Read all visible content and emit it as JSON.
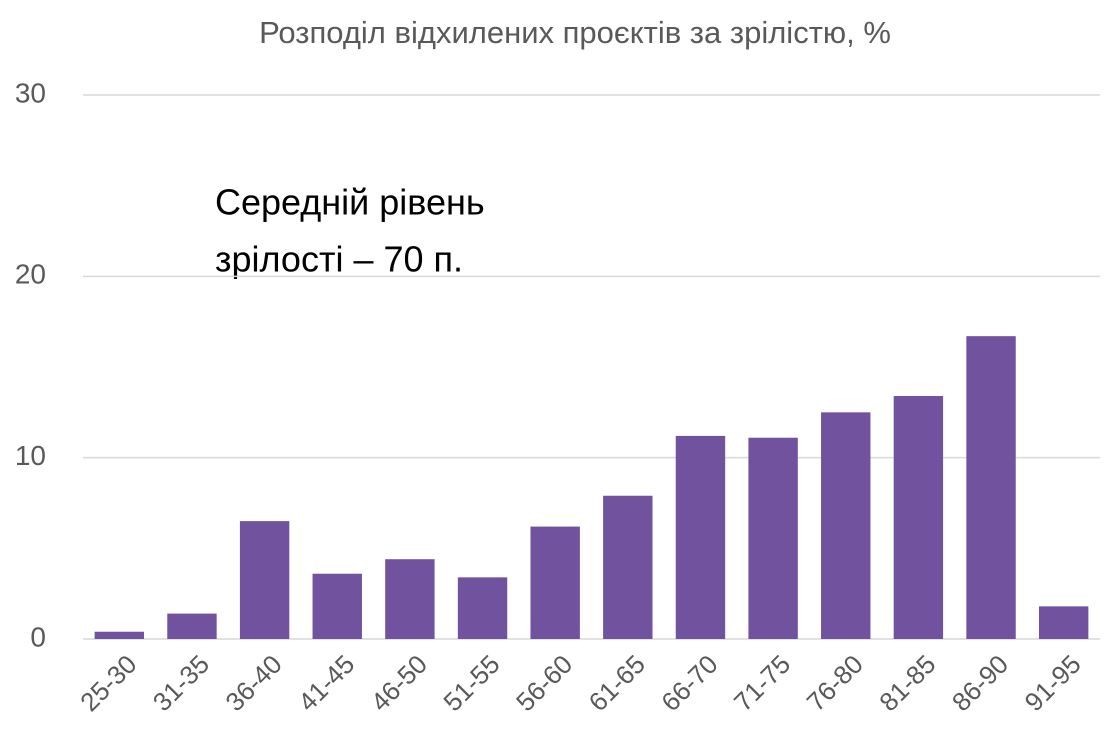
{
  "chart_data": {
    "type": "bar",
    "title": "Розподіл відхилених проєктів за зрілістю, %",
    "annotation": [
      "Середній рівень",
      "зрілості – 70 п."
    ],
    "categories": [
      "25-30",
      "31-35",
      "36-40",
      "41-45",
      "46-50",
      "51-55",
      "56-60",
      "61-65",
      "66-70",
      "71-75",
      "76-80",
      "81-85",
      "86-90",
      "91-95"
    ],
    "values": [
      0.4,
      1.4,
      6.5,
      3.6,
      4.4,
      3.4,
      6.2,
      7.9,
      11.2,
      11.1,
      12.5,
      13.4,
      16.7,
      1.8
    ],
    "color": "#70529e",
    "ylim": [
      0,
      30
    ],
    "yticks": [
      0,
      10,
      20,
      30
    ],
    "grid": true
  }
}
